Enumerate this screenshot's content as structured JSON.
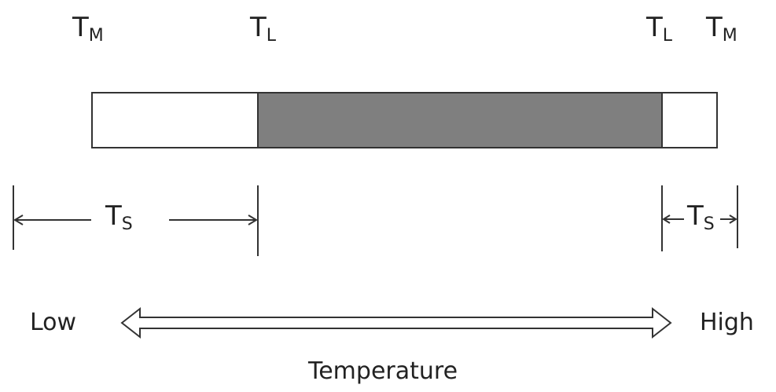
{
  "colors": {
    "shaded": "#7f7f7f",
    "line": "#333333",
    "fill": "#ffffff"
  },
  "top_labels": [
    {
      "main": "T",
      "sub": "M"
    },
    {
      "main": "T",
      "sub": "L"
    },
    {
      "main": "T",
      "sub": "L"
    },
    {
      "main": "T",
      "sub": "M"
    }
  ],
  "spans": [
    {
      "main": "T",
      "sub": "S"
    },
    {
      "main": "T",
      "sub": "S"
    }
  ],
  "axis": {
    "low": "Low",
    "high": "High",
    "title": "Temperature"
  }
}
